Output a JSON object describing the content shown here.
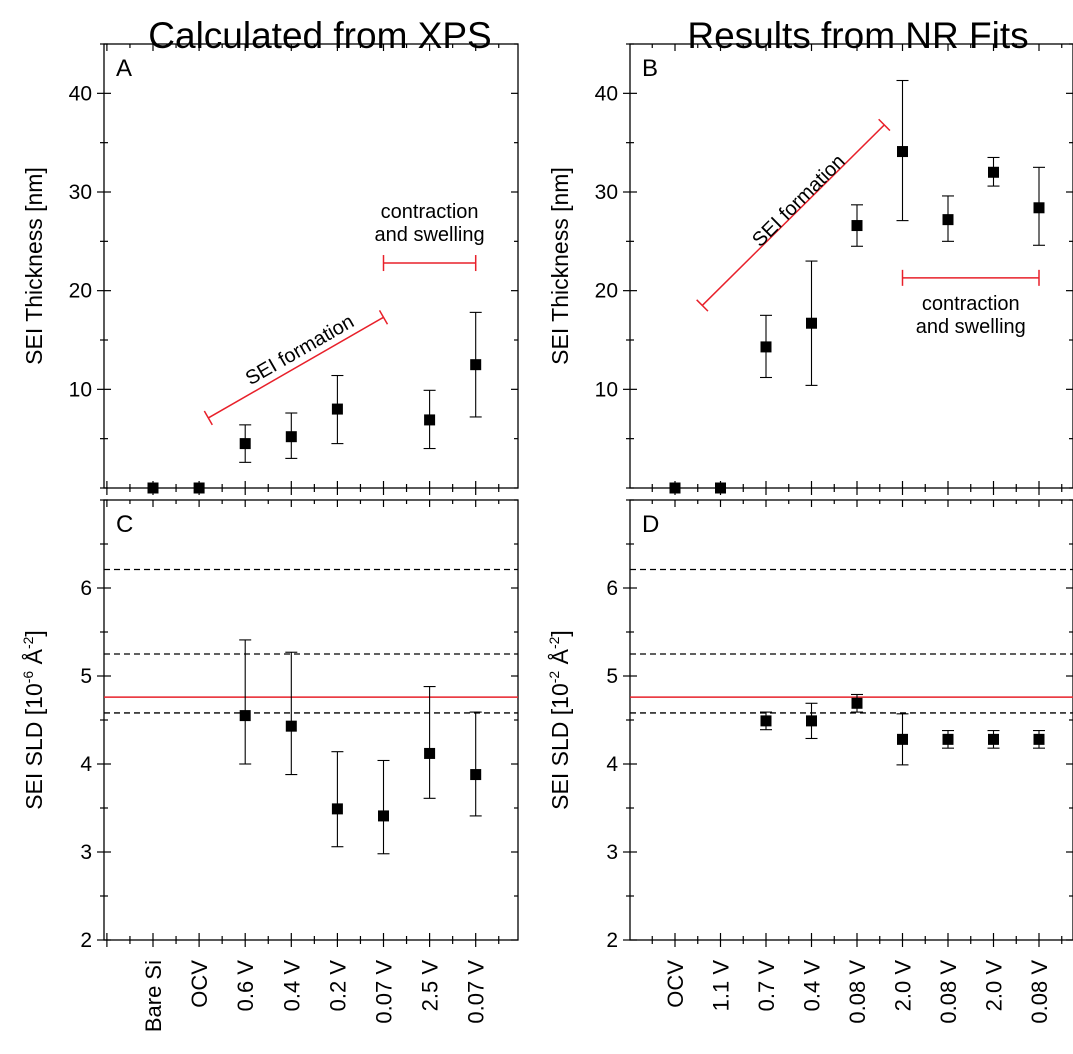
{
  "titles": {
    "left": "Calculated from XPS",
    "right": "Results from NR Fits"
  },
  "chart_data": [
    {
      "panel": "A",
      "type": "scatter",
      "ylabel": "SEI Thickness [nm]",
      "ylim": [
        0,
        45
      ],
      "yticks": [
        10,
        20,
        30,
        40
      ],
      "categories": [
        "Bare Si",
        "OCV",
        "0.6 V",
        "0.4 V",
        "0.2 V",
        "0.07 V",
        "2.5 V",
        "0.07 V"
      ],
      "values": [
        0,
        0,
        4.5,
        5.2,
        8.0,
        null,
        6.9,
        12.5
      ],
      "error_low": [
        0,
        0,
        2.6,
        3.0,
        4.5,
        null,
        4.0,
        7.2
      ],
      "error_high": [
        0,
        0,
        6.4,
        7.6,
        11.4,
        null,
        9.9,
        17.8
      ],
      "annotations": [
        {
          "text": "SEI formation",
          "from_category": 1.2,
          "from_y": 7.1,
          "to_category": 5.0,
          "to_y": 17.3,
          "color": "#e8202a"
        },
        {
          "text": "contraction",
          "line2": "and swelling",
          "from_category": 5.0,
          "to_category": 7.0,
          "y": 22.8,
          "color": "#e8202a"
        }
      ]
    },
    {
      "panel": "B",
      "type": "scatter",
      "ylabel": "SEI Thickness [nm]",
      "ylim": [
        0,
        45
      ],
      "yticks": [
        10,
        20,
        30,
        40
      ],
      "categories": [
        "OCV",
        "1.1 V",
        "0.7 V",
        "0.4 V",
        "0.08 V",
        "2.0 V",
        "0.08 V",
        "2.0 V",
        "0.08 V"
      ],
      "values": [
        0,
        0,
        14.3,
        16.7,
        26.6,
        34.1,
        27.2,
        32.0,
        28.4
      ],
      "error_low": [
        0,
        0,
        11.2,
        10.4,
        24.5,
        27.1,
        25.0,
        30.6,
        24.6
      ],
      "error_high": [
        0,
        0,
        17.5,
        23.0,
        28.7,
        41.3,
        29.6,
        33.5,
        32.5
      ],
      "annotations": [
        {
          "text": "SEI formation",
          "from_category": 0.6,
          "from_y": 18.5,
          "to_category": 4.6,
          "to_y": 36.8,
          "color": "#e8202a"
        },
        {
          "text": "contraction",
          "line2": "and swelling",
          "from_category": 5.0,
          "to_category": 8.0,
          "y": 21.3,
          "color": "#e8202a"
        }
      ]
    },
    {
      "panel": "C",
      "type": "scatter",
      "ylabel_main": "SEI SLD [10",
      "ylabel_exp1": "-6",
      "ylabel_mid": " Å",
      "ylabel_exp2": "-2",
      "ylabel_end": "]",
      "ylim": [
        2,
        7
      ],
      "yticks": [
        2,
        3,
        4,
        5,
        6
      ],
      "categories": [
        "Bare Si",
        "OCV",
        "0.6 V",
        "0.4 V",
        "0.2 V",
        "0.07 V",
        "2.5 V",
        "0.07 V"
      ],
      "values": [
        null,
        null,
        4.55,
        4.43,
        3.49,
        3.41,
        4.12,
        3.88
      ],
      "error_low": [
        null,
        null,
        4.0,
        3.88,
        3.06,
        2.98,
        3.61,
        3.41
      ],
      "error_high": [
        null,
        null,
        5.41,
        5.27,
        4.14,
        4.04,
        4.88,
        4.59
      ],
      "dashed_lines": [
        6.21,
        5.25,
        4.58
      ],
      "red_line": 4.76
    },
    {
      "panel": "D",
      "type": "scatter",
      "ylabel_main": "SEI SLD [10",
      "ylabel_exp1": "-2",
      "ylabel_mid": " Å",
      "ylabel_exp2": "-2",
      "ylabel_end": "]",
      "ylim": [
        2,
        7
      ],
      "yticks": [
        2,
        3,
        4,
        5,
        6
      ],
      "categories": [
        "OCV",
        "1.1 V",
        "0.7 V",
        "0.4 V",
        "0.08 V",
        "2.0 V",
        "0.08 V",
        "2.0 V",
        "0.08 V"
      ],
      "values": [
        null,
        null,
        4.49,
        4.49,
        4.69,
        4.28,
        4.28,
        4.28,
        4.28
      ],
      "error_low": [
        null,
        null,
        4.39,
        4.29,
        4.59,
        3.99,
        4.18,
        4.18,
        4.18
      ],
      "error_high": [
        null,
        null,
        4.59,
        4.69,
        4.79,
        4.57,
        4.38,
        4.38,
        4.38
      ],
      "dashed_lines": [
        6.21,
        5.25,
        4.58
      ],
      "red_line": 4.76
    }
  ],
  "colors": {
    "axis": "#000000",
    "marker": "#000000",
    "annotation": "#e8202a",
    "reference_line": "#e8202a"
  }
}
